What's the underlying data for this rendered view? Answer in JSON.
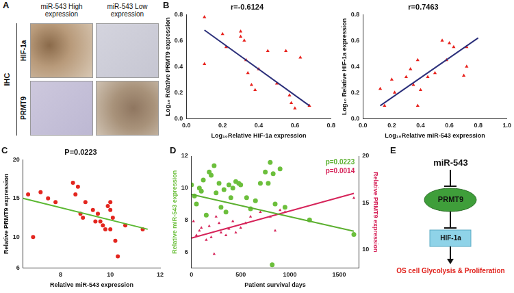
{
  "ihc": {
    "panel": "A",
    "method": "IHC",
    "columns": [
      "miR-543 High expression",
      "miR-543 Low expression"
    ],
    "rows": [
      "HIF-1a",
      "PRMT9"
    ]
  },
  "chart_data": [
    {
      "type": "scatter",
      "panel": "B",
      "title": "r=-0.6124",
      "x_label": "Log₁₀Relative HIF-1a expression",
      "y_label": "Log₁₀ Relative PRMT9 expression",
      "xlim": [
        0,
        0.8
      ],
      "xticks": [
        {
          "value": 0,
          "label": "0.0"
        },
        0.2,
        0.4,
        0.6,
        0.8
      ],
      "ylim": [
        0,
        0.8
      ],
      "yticks": [
        {
          "value": 0,
          "label": "0.0"
        },
        0.2,
        0.4,
        0.6,
        0.8
      ],
      "grid": false,
      "series": [
        {
          "type": "scatter",
          "marker": "triangle",
          "color": "#e8231e",
          "x": [
            0.1,
            0.1,
            0.2,
            0.22,
            0.3,
            0.3,
            0.32,
            0.33,
            0.34,
            0.36,
            0.38,
            0.4,
            0.45,
            0.5,
            0.55,
            0.57,
            0.58,
            0.6,
            0.63,
            0.68
          ],
          "values": [
            0.78,
            0.42,
            0.65,
            0.55,
            0.67,
            0.63,
            0.6,
            0.45,
            0.35,
            0.26,
            0.22,
            0.38,
            0.52,
            0.27,
            0.52,
            0.18,
            0.12,
            0.08,
            0.47,
            0.1
          ]
        },
        {
          "type": "line",
          "color": "#2b2f7a",
          "x": [
            0.1,
            0.68
          ],
          "values": [
            0.68,
            0.1
          ]
        }
      ]
    },
    {
      "type": "scatter",
      "title": "r=0.7463",
      "x_label": "Log₁₀Relative miR-543 expression",
      "y_label": "Log₁₀ Relative HIF-1a expression",
      "xlim": [
        0,
        1
      ],
      "xticks": [
        {
          "value": 0,
          "label": "0.0"
        },
        0.2,
        0.4,
        0.6,
        0.8,
        {
          "value": 1,
          "label": "1.0"
        }
      ],
      "ylim": [
        0,
        0.8
      ],
      "yticks": [
        {
          "value": 0,
          "label": "0.0"
        },
        0.2,
        0.4,
        0.6,
        0.8
      ],
      "grid": false,
      "series": [
        {
          "type": "scatter",
          "marker": "triangle",
          "color": "#e8231e",
          "x": [
            0.12,
            0.15,
            0.2,
            0.22,
            0.3,
            0.33,
            0.35,
            0.38,
            0.38,
            0.4,
            0.45,
            0.5,
            0.55,
            0.58,
            0.6,
            0.63,
            0.7,
            0.72,
            0.72
          ],
          "values": [
            0.23,
            0.1,
            0.3,
            0.2,
            0.32,
            0.38,
            0.26,
            0.45,
            0.1,
            0.22,
            0.32,
            0.35,
            0.6,
            0.45,
            0.58,
            0.55,
            0.33,
            0.55,
            0.4
          ]
        },
        {
          "type": "line",
          "color": "#2b2f7a",
          "x": [
            0.12,
            0.8
          ],
          "values": [
            0.1,
            0.62
          ]
        }
      ]
    },
    {
      "type": "scatter",
      "panel": "C",
      "title": "P=0.0223",
      "x_label": "Relative miR-543 expression",
      "y_label": "Relative PRMT9 expression",
      "xlim": [
        6.5,
        12
      ],
      "xticks": [
        8,
        10,
        12
      ],
      "ylim": [
        6,
        20
      ],
      "yticks": [
        6,
        10,
        15,
        20
      ],
      "grid": false,
      "series": [
        {
          "type": "scatter",
          "marker": "circle",
          "color": "#e3261f",
          "x": [
            6.7,
            6.9,
            7.2,
            7.5,
            7.8,
            8.5,
            8.6,
            8.7,
            8.8,
            8.9,
            9,
            9.3,
            9.4,
            9.5,
            9.6,
            9.7,
            9.8,
            9.9,
            10,
            10,
            10,
            10.1,
            10.2,
            10.3,
            10.6,
            11.3
          ],
          "values": [
            15.5,
            10,
            15.8,
            15,
            14.5,
            17,
            15.5,
            16.5,
            13,
            12.5,
            14.5,
            13.5,
            12,
            13,
            12,
            11.5,
            11,
            14,
            14.5,
            13.5,
            11,
            12.5,
            9.5,
            7.5,
            11.5,
            11
          ]
        },
        {
          "type": "line",
          "color": "#5bb832",
          "x": [
            6.5,
            11.5
          ],
          "values": [
            15,
            11
          ]
        }
      ]
    },
    {
      "type": "scatter",
      "panel": "D",
      "x_label": "Patient survival days",
      "y_label": "Relative miR-543 expression",
      "y2_label": "Relative PRMT9 expression",
      "xlim": [
        0,
        1700
      ],
      "xticks": [
        0,
        500,
        1000,
        1500
      ],
      "ylim": [
        5,
        12
      ],
      "yticks": [
        6,
        8,
        10,
        12
      ],
      "y2lim": [
        8,
        20
      ],
      "y2ticks": [
        10,
        15,
        20
      ],
      "grid": false,
      "annotations": [
        {
          "text": "p=0.0223",
          "color": "#5cb030"
        },
        {
          "text": "p=0.0014",
          "color": "#d6245a"
        }
      ],
      "series": [
        {
          "type": "scatter",
          "marker": "circle",
          "color": "#6cbf3c",
          "x": [
            0,
            30,
            50,
            80,
            100,
            120,
            150,
            180,
            200,
            230,
            250,
            280,
            300,
            330,
            350,
            380,
            400,
            420,
            450,
            480,
            500,
            560,
            600,
            650,
            700,
            750,
            780,
            800,
            820,
            830,
            850,
            900,
            950,
            1200,
            1650
          ],
          "values": [
            10.2,
            9.5,
            9,
            10,
            9.8,
            10.5,
            8.3,
            11,
            10.8,
            11.4,
            9.7,
            10.3,
            8.8,
            9.9,
            8.5,
            10.2,
            9.4,
            10,
            10.4,
            10.3,
            10.2,
            9.4,
            8.7,
            9.2,
            10.3,
            11,
            10.3,
            11.6,
            5.2,
            10.9,
            9,
            11.2,
            8.8,
            8,
            7.1
          ]
        },
        {
          "type": "line",
          "color": "#5cb030",
          "x": [
            0,
            1650
          ],
          "values": [
            9.6,
            7.3
          ]
        },
        {
          "type": "scatter",
          "marker": "triangle",
          "color": "#d6245a",
          "axis": "y2",
          "x": [
            20,
            50,
            80,
            100,
            150,
            180,
            200,
            230,
            250,
            280,
            300,
            350,
            380,
            420,
            450,
            500,
            550,
            600,
            700,
            800,
            850,
            900,
            950,
            1650
          ],
          "values": [
            13,
            11.5,
            12,
            12.3,
            11,
            12.5,
            11.3,
            9.5,
            13.5,
            12.8,
            11.8,
            11.5,
            12.2,
            13,
            11.8,
            12.3,
            12.8,
            13.5,
            14,
            13.5,
            12,
            14.2,
            14,
            15.5
          ]
        },
        {
          "type": "line",
          "color": "#d6245a",
          "axis": "y2",
          "x": [
            0,
            1650
          ],
          "values": [
            11.2,
            16
          ]
        }
      ]
    }
  ],
  "diagram": {
    "panel": "E",
    "nodes": [
      {
        "label": "miR-543"
      },
      {
        "label": "PRMT9"
      },
      {
        "label": "HIF-1a"
      },
      {
        "label": "OS cell Glycolysis & Proliferation"
      }
    ]
  }
}
